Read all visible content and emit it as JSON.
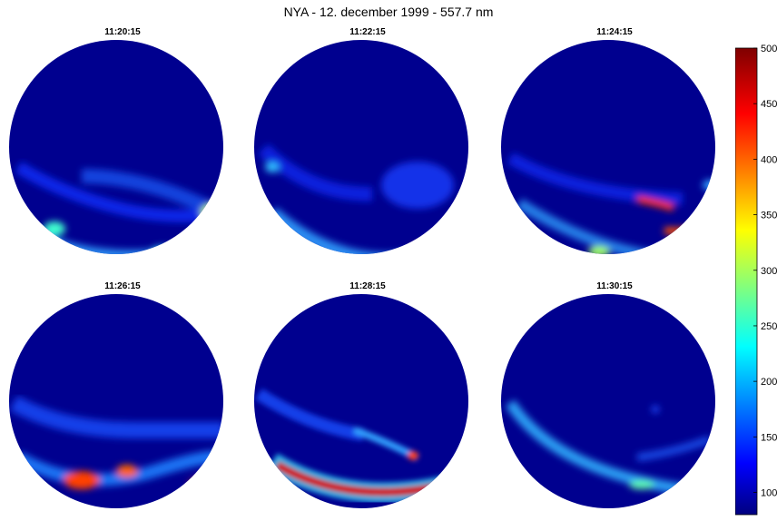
{
  "title": "NYA - 12. december 1999 - 557.7 nm",
  "panels": [
    {
      "time": "11:20:15"
    },
    {
      "time": "11:22:15"
    },
    {
      "time": "11:24:15"
    },
    {
      "time": "11:26:15"
    },
    {
      "time": "11:28:15"
    },
    {
      "time": "11:30:15"
    }
  ],
  "colorbar": {
    "min": 80,
    "max": 500,
    "ticks": [
      "500",
      "450",
      "400",
      "350",
      "300",
      "250",
      "200",
      "150",
      "100"
    ],
    "colors": [
      "#00007f",
      "#0000ff",
      "#00ffff",
      "#ffff00",
      "#ff0000",
      "#7f0000"
    ]
  }
}
